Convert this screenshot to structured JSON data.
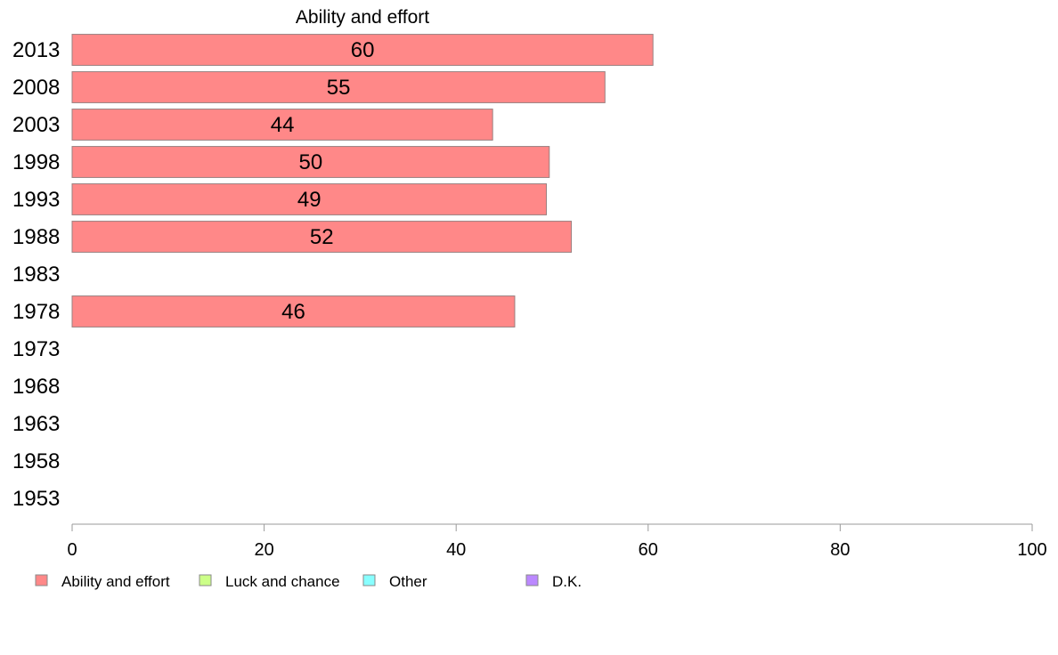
{
  "chart_data": {
    "type": "bar",
    "orientation": "horizontal",
    "title": "Ability and effort",
    "categories": [
      "2013",
      "2008",
      "2003",
      "1998",
      "1993",
      "1988",
      "1983",
      "1978",
      "1973",
      "1968",
      "1963",
      "1958",
      "1953"
    ],
    "series": [
      {
        "name": "Ability and effort",
        "color": "#ff8888",
        "values": [
          60,
          55,
          44,
          50,
          49,
          52,
          null,
          46,
          null,
          null,
          null,
          null,
          null
        ],
        "precise_values": [
          60.5,
          55.5,
          43.8,
          49.7,
          49.4,
          52.0,
          null,
          46.1,
          null,
          null,
          null,
          null,
          null
        ]
      }
    ],
    "xlim": [
      0,
      100
    ],
    "xticks": [
      0,
      20,
      40,
      60,
      80,
      100
    ],
    "xlabel": "",
    "ylabel": "",
    "grid": false,
    "legend": {
      "placement": "bottom",
      "entries": [
        {
          "label": "Ability and effort",
          "color": "#ff8888"
        },
        {
          "label": "Luck and chance",
          "color": "#ccff88"
        },
        {
          "label": "Other",
          "color": "#88ffff"
        },
        {
          "label": "D.K.",
          "color": "#bb88ff"
        }
      ]
    }
  }
}
